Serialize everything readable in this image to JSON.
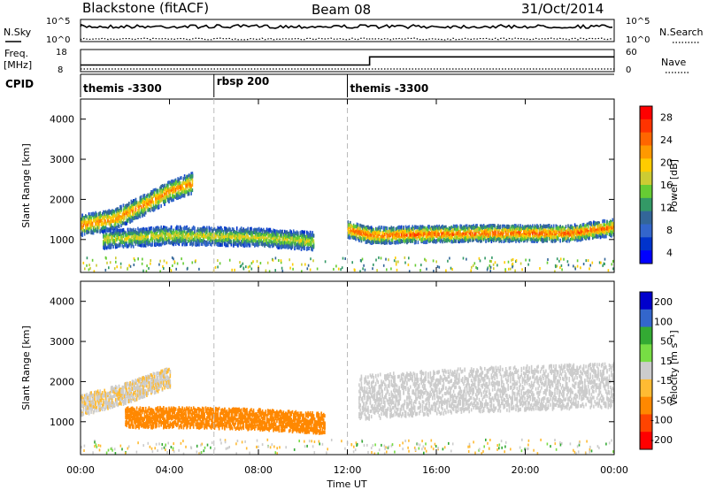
{
  "header": {
    "radar": "Blackstone (fitACF)",
    "beam": "Beam 08",
    "date": "31/Oct/2014"
  },
  "left_labels": {
    "nsky": "N.Sky",
    "freq": "Freq.",
    "freq_unit": "[MHz]",
    "cpid": "CPID",
    "nsky_ticks": [
      "10^5",
      "10^0"
    ],
    "freq_ticks": [
      "18",
      "8"
    ]
  },
  "right_labels": {
    "nsearch": "N.Search",
    "nsearch_ticks": [
      "10^5",
      "10^0"
    ],
    "nave": "Nave",
    "nave_ticks": [
      "60",
      "0"
    ]
  },
  "cpid_segments": [
    {
      "label": "themis -3300",
      "start_h": 0,
      "end_h": 6
    },
    {
      "label": "rbsp 200",
      "start_h": 6,
      "end_h": 12
    },
    {
      "label": "themis -3300",
      "start_h": 12,
      "end_h": 24
    }
  ],
  "freq_panel": {
    "freq_mhz": 9.2,
    "nave_step_time_h": 13.0,
    "nave_low": 18,
    "nave_high": 40
  },
  "power_colorbar": {
    "label": "Power [dB]",
    "ticks": [
      "28",
      "24",
      "20",
      "16",
      "12",
      "8",
      "4"
    ],
    "colors": [
      "#ff0000",
      "#ff3300",
      "#ff6600",
      "#ff9900",
      "#ffcc00",
      "#cccc33",
      "#66cc33",
      "#339966",
      "#336699",
      "#3366cc",
      "#0033cc",
      "#0000ff"
    ]
  },
  "velocity_colorbar": {
    "label": "Velocity [m s⁻¹]",
    "ticks": [
      "200",
      "100",
      "50",
      "15",
      "-15",
      "-50",
      "-100",
      "-200"
    ],
    "colors": [
      "#0000cc",
      "#3366cc",
      "#33aa33",
      "#77dd44",
      "#cccccc",
      "#ffbb33",
      "#ff8800",
      "#ff4400",
      "#ff0000"
    ]
  },
  "x_axis": {
    "label": "Time UT",
    "ticks": [
      "00:00",
      "04:00",
      "08:00",
      "12:00",
      "16:00",
      "20:00",
      "00:00"
    ]
  },
  "chart_data": [
    {
      "type": "heatmap",
      "title": "",
      "xlabel": "Time UT",
      "ylabel": "Slant Range [km]",
      "xlim": [
        "00:00",
        "24:00"
      ],
      "ylim": [
        180,
        4500
      ],
      "yticks": [
        1000,
        2000,
        3000,
        4000
      ],
      "colorbar": {
        "label": "Power [dB]",
        "range": [
          0,
          30
        ]
      },
      "features": [
        {
          "name": "band",
          "t": [
            0,
            1.5,
            3,
            4,
            5
          ],
          "range_km": [
            1350,
            1500,
            1900,
            2200,
            2400
          ],
          "width_km": 250,
          "power_db": 24
        },
        {
          "name": "band",
          "t": [
            1,
            4,
            8,
            10.5
          ],
          "range_km": [
            1000,
            1100,
            1050,
            950
          ],
          "width_km": 220,
          "power_db": 18
        },
        {
          "name": "band",
          "t": [
            12,
            13,
            18,
            22,
            24
          ],
          "range_km": [
            1250,
            1100,
            1150,
            1150,
            1300
          ],
          "width_km": 200,
          "power_db": 26
        }
      ]
    },
    {
      "type": "heatmap",
      "title": "",
      "xlabel": "Time UT",
      "ylabel": "Slant Range [km]",
      "xlim": [
        "00:00",
        "24:00"
      ],
      "ylim": [
        180,
        4500
      ],
      "yticks": [
        1000,
        2000,
        3000,
        4000
      ],
      "colorbar": {
        "label": "Velocity [m s⁻¹]",
        "range": [
          -200,
          200
        ]
      },
      "features": [
        {
          "name": "band",
          "t": [
            0,
            2,
            4
          ],
          "range_km": [
            1400,
            1700,
            2100
          ],
          "width_km": 250,
          "velocity": -10
        },
        {
          "name": "band",
          "t": [
            2,
            5,
            8,
            11
          ],
          "range_km": [
            1100,
            1100,
            1050,
            950
          ],
          "width_km": 250,
          "velocity": -60
        },
        {
          "name": "band",
          "t": [
            12.5,
            18,
            24
          ],
          "range_km": [
            1600,
            1800,
            1900
          ],
          "width_km": 550,
          "velocity": 0
        }
      ]
    }
  ]
}
